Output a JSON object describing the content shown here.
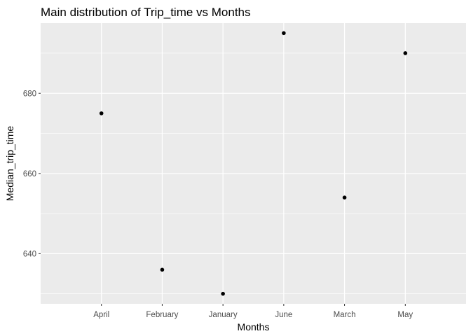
{
  "chart_data": {
    "type": "scatter",
    "title": "Main distribution of Trip_time vs Months",
    "xlabel": "Months",
    "ylabel": "Median_trip_time",
    "categories": [
      "April",
      "February",
      "January",
      "June",
      "March",
      "May"
    ],
    "values": [
      675,
      636,
      630,
      695,
      654,
      690
    ],
    "ylim": [
      627.5,
      697.5
    ],
    "yticks": [
      640,
      660,
      680
    ],
    "grid": true,
    "legend": "none",
    "colors": {
      "panel": "#ebebeb",
      "grid_major": "#ffffff",
      "point": "#000000",
      "tick_label": "#4d4d4d"
    }
  }
}
